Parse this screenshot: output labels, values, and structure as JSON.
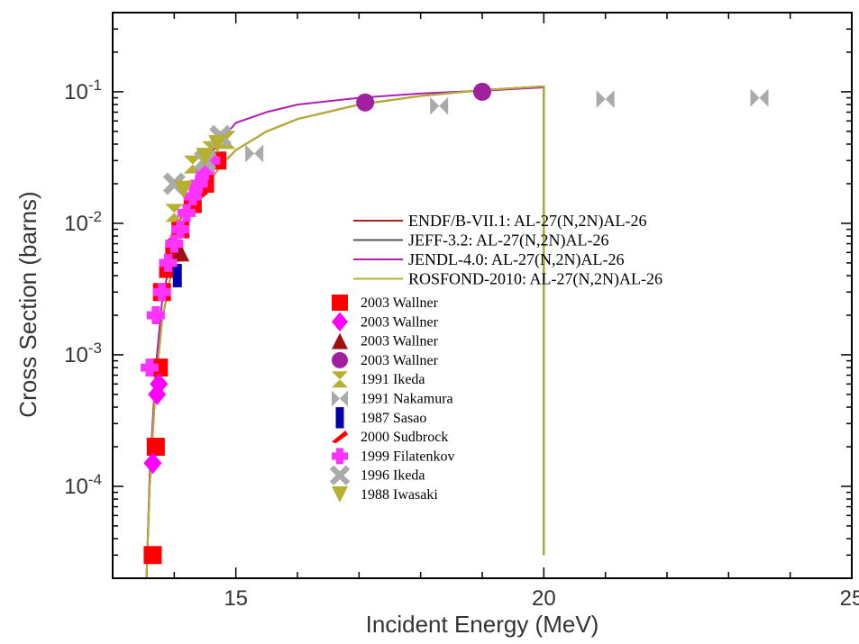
{
  "chart_data": {
    "type": "scatter",
    "xlabel": "Incident Energy (MeV)",
    "ylabel": "Cross Section (barns)",
    "xlim": [
      13.0,
      25.0
    ],
    "ylim": [
      2e-05,
      0.4
    ],
    "yscale": "log",
    "x_ticks": [
      15,
      20,
      25
    ],
    "y_ticks": [
      {
        "value": 0.0001,
        "base": "10",
        "exp": "-4"
      },
      {
        "value": 0.001,
        "base": "10",
        "exp": "-3"
      },
      {
        "value": 0.01,
        "base": "10",
        "exp": "-2"
      },
      {
        "value": 0.1,
        "base": "10",
        "exp": "-1"
      }
    ],
    "legend_position": "center-right",
    "evaluations": [
      {
        "name": "ENDF/B-VII.1: AL-27(N,2N)AL-26",
        "color": "#b02020",
        "x": [
          13.55,
          13.6,
          13.7,
          13.8,
          14.0,
          14.2,
          14.5,
          14.8,
          15.0,
          15.5,
          16.0,
          17.0,
          18.0,
          19.0,
          20.0,
          20.0
        ],
        "y": [
          2e-05,
          0.0001,
          0.0006,
          0.0018,
          0.0055,
          0.0105,
          0.019,
          0.029,
          0.036,
          0.05,
          0.062,
          0.08,
          0.093,
          0.103,
          0.11,
          3e-05
        ]
      },
      {
        "name": "JEFF-3.2: AL-27(N,2N)AL-26",
        "color": "#555555",
        "x": [
          13.55,
          13.6,
          13.7,
          13.8,
          14.0,
          14.2,
          14.5,
          14.8,
          15.0,
          15.5,
          16.0,
          17.0,
          18.0,
          19.0,
          20.0,
          20.0
        ],
        "y": [
          2e-05,
          0.0001,
          0.0006,
          0.0018,
          0.0055,
          0.0105,
          0.019,
          0.029,
          0.036,
          0.05,
          0.062,
          0.08,
          0.093,
          0.103,
          0.11,
          3e-05
        ]
      },
      {
        "name": "JENDL-4.0: AL-27(N,2N)AL-26",
        "color": "#b020b0",
        "x": [
          13.55,
          13.6,
          13.7,
          13.8,
          14.0,
          14.2,
          14.5,
          14.8,
          15.0,
          15.5,
          16.0,
          17.0,
          18.0,
          19.0,
          20.0
        ],
        "y": [
          2e-05,
          0.00012,
          0.0008,
          0.0025,
          0.0075,
          0.015,
          0.03,
          0.045,
          0.058,
          0.07,
          0.08,
          0.09,
          0.097,
          0.102,
          0.108
        ]
      },
      {
        "name": "ROSFOND-2010: AL-27(N,2N)AL-26",
        "color": "#b5b030",
        "x": [
          13.55,
          13.6,
          13.7,
          13.8,
          14.0,
          14.2,
          14.5,
          14.8,
          15.0,
          15.5,
          16.0,
          17.0,
          18.0,
          19.0,
          20.0,
          20.0
        ],
        "y": [
          2e-05,
          0.0001,
          0.0006,
          0.0018,
          0.0055,
          0.0105,
          0.019,
          0.029,
          0.036,
          0.05,
          0.062,
          0.08,
          0.093,
          0.103,
          0.11,
          3e-05
        ]
      }
    ],
    "experiments": [
      {
        "name": "2003 Wallner",
        "color": "#ff0000",
        "marker": "square",
        "x": [
          13.65,
          13.7,
          13.75,
          13.8,
          13.9,
          14.0,
          14.1,
          14.3,
          14.5,
          14.7
        ],
        "y": [
          3e-05,
          0.0002,
          0.0008,
          0.003,
          0.0045,
          0.006,
          0.009,
          0.014,
          0.02,
          0.03
        ]
      },
      {
        "name": "2003 Wallner",
        "color": "#ff00ff",
        "marker": "diamond",
        "x": [
          13.65,
          13.72,
          13.75
        ],
        "y": [
          0.00015,
          0.0005,
          0.0006
        ]
      },
      {
        "name": "2003 Wallner",
        "color": "#a01010",
        "marker": "triangle-up",
        "x": [
          14.1
        ],
        "y": [
          0.006
        ]
      },
      {
        "name": "2003 Wallner",
        "color": "#a020a0",
        "marker": "circle",
        "x": [
          17.1,
          19.0
        ],
        "y": [
          0.083,
          0.1
        ]
      },
      {
        "name": "1991 Ikeda",
        "color": "#b5b030",
        "marker": "hourglass",
        "x": [
          14.0,
          14.3,
          14.6,
          14.85
        ],
        "y": [
          0.012,
          0.028,
          0.036,
          0.043
        ]
      },
      {
        "name": "1991 Nakamura",
        "color": "#aaaaaa",
        "marker": "bowtie",
        "x": [
          15.3,
          18.3,
          21.0,
          23.5
        ],
        "y": [
          0.034,
          0.078,
          0.088,
          0.09
        ]
      },
      {
        "name": "1987 Sasao",
        "color": "#0000aa",
        "marker": "bar",
        "x": [
          14.05
        ],
        "y": [
          0.004
        ]
      },
      {
        "name": "2000 Sudbrock",
        "color": "#ff0000",
        "marker": "slash",
        "x": [
          14.0,
          14.4
        ],
        "y": [
          0.008,
          0.016
        ]
      },
      {
        "name": "1999 Filatenkov",
        "color": "#ff33ff",
        "marker": "plus",
        "x": [
          13.6,
          13.7,
          13.8,
          13.9,
          14.0,
          14.1,
          14.2,
          14.3,
          14.4,
          14.5,
          14.6
        ],
        "y": [
          0.0008,
          0.002,
          0.003,
          0.005,
          0.007,
          0.009,
          0.012,
          0.016,
          0.02,
          0.025,
          0.03
        ]
      },
      {
        "name": "1996 Ikeda",
        "color": "#aaaaaa",
        "marker": "x",
        "x": [
          14.0,
          14.5,
          14.75
        ],
        "y": [
          0.02,
          0.03,
          0.046
        ]
      },
      {
        "name": "1988 Iwasaki",
        "color": "#b5b030",
        "marker": "triangle-down",
        "x": [
          14.15,
          14.5,
          14.7
        ],
        "y": [
          0.018,
          0.032,
          0.04
        ]
      }
    ]
  }
}
